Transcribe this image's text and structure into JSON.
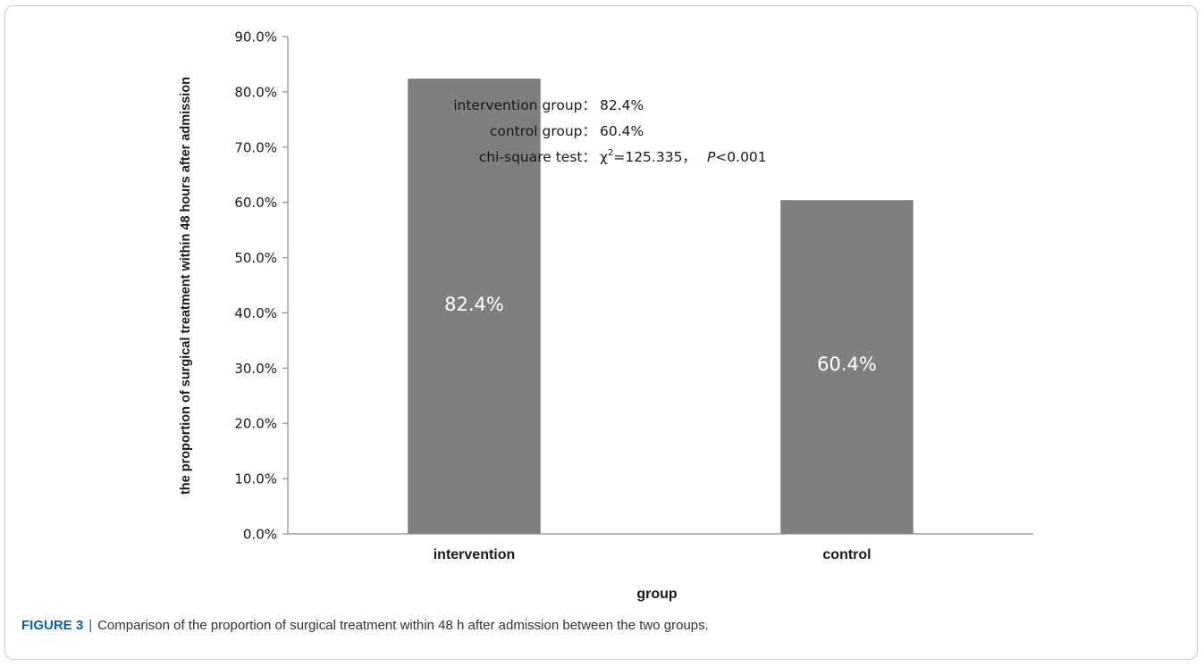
{
  "chart_data": {
    "type": "bar",
    "categories": [
      "intervention",
      "control"
    ],
    "values": [
      82.4,
      60.4
    ],
    "value_labels": [
      "82.4%",
      "60.4%"
    ],
    "title": "",
    "xlabel": "group",
    "ylabel": "the proportion of surgical treatment within 48 hours after admission",
    "ylim": [
      0,
      90
    ],
    "yticks": [
      0,
      10,
      20,
      30,
      40,
      50,
      60,
      70,
      80,
      90
    ],
    "ytick_labels": [
      "0.0%",
      "10.0%",
      "20.0%",
      "30.0%",
      "40.0%",
      "50.0%",
      "60.0%",
      "70.0%",
      "80.0%",
      "90.0%"
    ],
    "grid": false,
    "legend": "none",
    "bar_color": "#7f7f7f",
    "annotation": {
      "line1_label": "intervention group：",
      "line1_value": "82.4%",
      "line2_label": "control group：",
      "line2_value": "60.4%",
      "line3_label": "chi-square test：",
      "line3_chi": "χ",
      "line3_sup": "2",
      "line3_stat": "=125.335，",
      "line3_p": "P",
      "line3_pval": "<0.001"
    }
  },
  "caption": {
    "figure_label": "FIGURE 3",
    "separator": "|",
    "text": "Comparison of the proportion of surgical treatment within 48 h after admission between the two groups."
  }
}
